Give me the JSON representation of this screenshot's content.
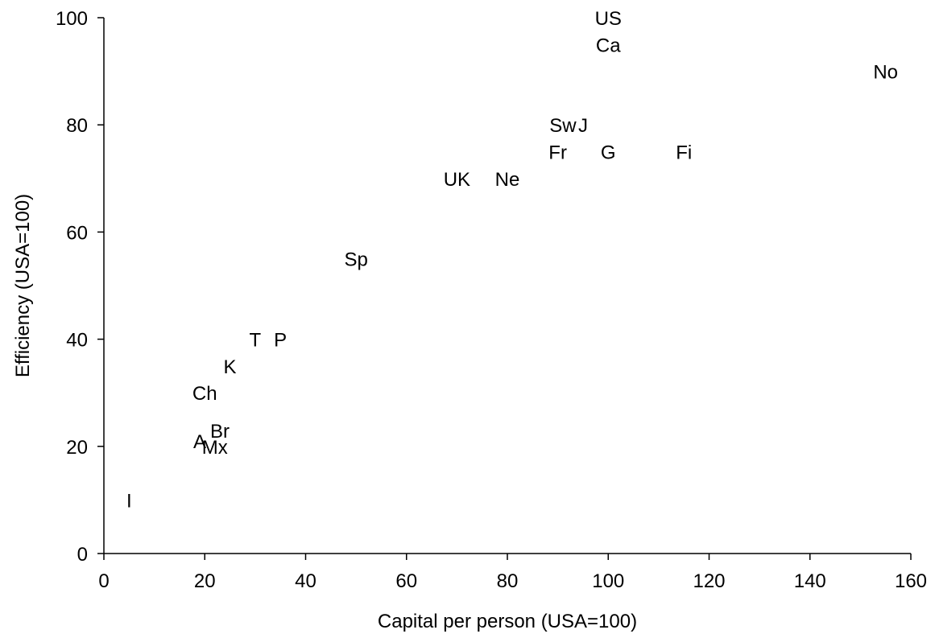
{
  "chart_data": {
    "type": "scatter",
    "title": "",
    "xlabel": "Capital per person (USA=100)",
    "ylabel": "Efficiency (USA=100)",
    "xlim": [
      0,
      160
    ],
    "ylim": [
      0,
      100
    ],
    "xticks": [
      0,
      20,
      40,
      60,
      80,
      100,
      120,
      140,
      160
    ],
    "yticks": [
      0,
      20,
      40,
      60,
      80,
      100
    ],
    "grid": false,
    "points": [
      {
        "label": "US",
        "x": 100,
        "y": 100
      },
      {
        "label": "Ca",
        "x": 100,
        "y": 95
      },
      {
        "label": "No",
        "x": 155,
        "y": 90
      },
      {
        "label": "Sw",
        "x": 91,
        "y": 80
      },
      {
        "label": "J",
        "x": 95,
        "y": 80
      },
      {
        "label": "Fr",
        "x": 90,
        "y": 75
      },
      {
        "label": "G",
        "x": 100,
        "y": 75
      },
      {
        "label": "Fi",
        "x": 115,
        "y": 75
      },
      {
        "label": "UK",
        "x": 70,
        "y": 70
      },
      {
        "label": "Ne",
        "x": 80,
        "y": 70
      },
      {
        "label": "Sp",
        "x": 50,
        "y": 55
      },
      {
        "label": "T",
        "x": 30,
        "y": 40
      },
      {
        "label": "P",
        "x": 35,
        "y": 40
      },
      {
        "label": "K",
        "x": 25,
        "y": 35
      },
      {
        "label": "Ch",
        "x": 20,
        "y": 30
      },
      {
        "label": "Br",
        "x": 23,
        "y": 23
      },
      {
        "label": "A",
        "x": 19,
        "y": 21
      },
      {
        "label": "Mx",
        "x": 22,
        "y": 20
      },
      {
        "label": "I",
        "x": 5,
        "y": 10
      }
    ]
  }
}
